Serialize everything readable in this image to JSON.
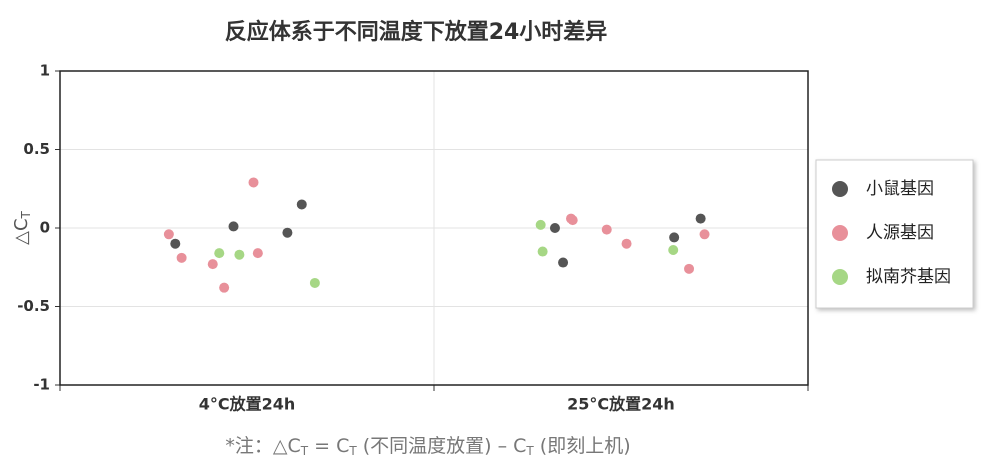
{
  "chart_data": {
    "type": "scatter",
    "title": "反应体系于不同温度下放置24小时差异",
    "ylabel_parts": [
      "△C",
      "T"
    ],
    "categories": [
      "4°C放置24h",
      "25°C放置24h"
    ],
    "series": [
      {
        "name": "小鼠基因",
        "color": "#555555",
        "x": [
          "4°C放置24h",
          "4°C放置24h",
          "4°C放置24h",
          "4°C放置24h",
          "25°C放置24h",
          "25°C放置24h",
          "25°C放置24h",
          "25°C放置24h"
        ],
        "values": [
          -0.03,
          -0.1,
          0.01,
          0.15,
          -0.22,
          -0.06,
          0.0,
          0.06
        ]
      },
      {
        "name": "人源基因",
        "color": "#e8909a",
        "x": [
          "4°C放置24h",
          "4°C放置24h",
          "4°C放置24h",
          "4°C放置24h",
          "4°C放置24h",
          "4°C放置24h",
          "25°C放置24h",
          "25°C放置24h",
          "25°C放置24h",
          "25°C放置24h",
          "25°C放置24h",
          "25°C放置24h"
        ],
        "values": [
          -0.16,
          -0.38,
          -0.23,
          0.29,
          -0.19,
          -0.04,
          -0.26,
          0.06,
          -0.01,
          -0.04,
          0.05,
          -0.1
        ]
      },
      {
        "name": "拟南芥基因",
        "color": "#a6d785",
        "x": [
          "4°C放置24h",
          "4°C放置24h",
          "4°C放置24h",
          "25°C放置24h",
          "25°C放置24h",
          "25°C放置24h"
        ],
        "values": [
          -0.17,
          -0.16,
          -0.35,
          -0.15,
          -0.14,
          0.02
        ]
      }
    ],
    "ylim": [
      -1,
      1
    ],
    "yticks": [
      1,
      0.5,
      0,
      -0.5,
      -1
    ],
    "grid": true,
    "legend": "right",
    "footnote_parts": [
      "*注：△C",
      "T",
      " = C",
      "T",
      " (不同温度放置) – C",
      "T",
      " (即刻上机)"
    ]
  }
}
